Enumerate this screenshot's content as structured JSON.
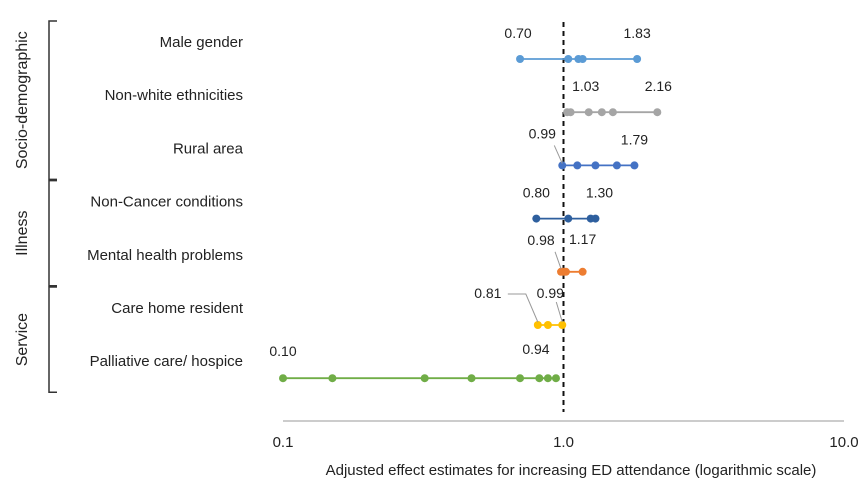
{
  "chart_data": {
    "type": "scatter",
    "xlabel": "Adjusted effect estimates for increasing ED attendance (logarithmic scale)",
    "x_scale": "log",
    "xlim": [
      0.1,
      10.0
    ],
    "x_ticks": [
      {
        "value": 0.1,
        "label": "0.1"
      },
      {
        "value": 1.0,
        "label": "1.0"
      },
      {
        "value": 10.0,
        "label": "10.0"
      }
    ],
    "reference_line": 1.0,
    "groups": [
      {
        "name": "Socio-demographic",
        "rows": [
          0,
          1,
          2
        ]
      },
      {
        "name": "Illness",
        "rows": [
          3,
          4
        ]
      },
      {
        "name": "Service",
        "rows": [
          5,
          6
        ]
      }
    ],
    "rows": [
      {
        "label": "Male gender",
        "color": "#5b9bd5",
        "min": 0.7,
        "max": 1.83,
        "points": [
          0.7,
          1.04,
          1.13,
          1.17,
          1.83
        ],
        "min_label": "0.70",
        "max_label": "1.83"
      },
      {
        "label": "Non-white ethnicities",
        "color": "#a5a5a5",
        "min": 1.03,
        "max": 2.16,
        "points": [
          1.03,
          1.06,
          1.23,
          1.37,
          1.5,
          2.16
        ],
        "min_label": "1.03",
        "max_label": "2.16"
      },
      {
        "label": "Rural area",
        "color": "#4472c4",
        "min": 0.99,
        "max": 1.79,
        "points": [
          0.99,
          1.12,
          1.3,
          1.55,
          1.79
        ],
        "min_label": "0.99",
        "max_label": "1.79"
      },
      {
        "label": "Non-Cancer conditions",
        "color": "#2e5f9e",
        "min": 0.8,
        "max": 1.3,
        "points": [
          0.8,
          1.04,
          1.25,
          1.3
        ],
        "min_label": "0.80",
        "max_label": "1.30"
      },
      {
        "label": "Mental health problems",
        "color": "#ed7d31",
        "min": 0.98,
        "max": 1.17,
        "points": [
          0.98,
          1.0,
          1.02,
          1.17
        ],
        "min_label": "0.98",
        "max_label": "1.17"
      },
      {
        "label": "Care home resident",
        "color": "#ffc000",
        "min": 0.81,
        "max": 0.99,
        "points": [
          0.81,
          0.88,
          0.99
        ],
        "min_label": "0.81",
        "max_label": "0.99"
      },
      {
        "label": "Palliative care/ hospice",
        "color": "#70ad47",
        "min": 0.1,
        "max": 0.94,
        "points": [
          0.1,
          0.15,
          0.32,
          0.47,
          0.7,
          0.82,
          0.88,
          0.94
        ],
        "min_label": "0.10",
        "max_label": "0.94"
      }
    ]
  }
}
